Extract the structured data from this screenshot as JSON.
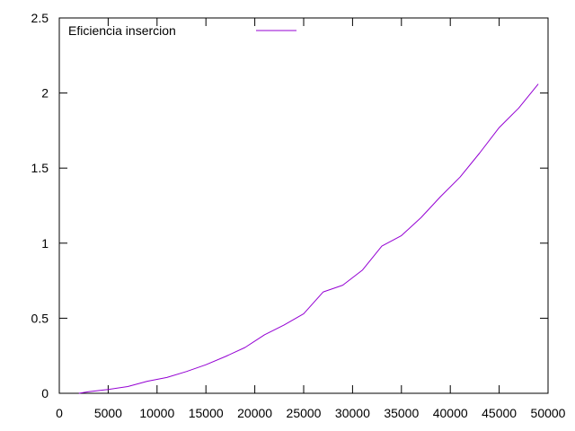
{
  "chart_data": {
    "type": "line",
    "title": "",
    "xlabel": "",
    "ylabel": "",
    "xlim": [
      0,
      50000
    ],
    "ylim": [
      0,
      2.5
    ],
    "grid": false,
    "legend_position": "top-left",
    "x_ticks": [
      0,
      5000,
      10000,
      15000,
      20000,
      25000,
      30000,
      35000,
      40000,
      45000,
      50000
    ],
    "x_tick_labels": [
      "0",
      "5000",
      "10000",
      "15000",
      "20000",
      "25000",
      "30000",
      "35000",
      "40000",
      "45000",
      "50000"
    ],
    "y_ticks": [
      0,
      0.5,
      1,
      1.5,
      2,
      2.5
    ],
    "y_tick_labels": [
      "0",
      "0.5",
      "1",
      "1.5",
      "2",
      "2.5"
    ],
    "series": [
      {
        "name": "Eficiencia insercion",
        "color": "#9400d3",
        "x": [
          2000,
          3000,
          5000,
          7000,
          9000,
          11000,
          13000,
          15000,
          17000,
          19000,
          21000,
          23000,
          25000,
          27000,
          29000,
          31000,
          33000,
          35000,
          37000,
          39000,
          41000,
          43000,
          45000,
          47000,
          49000
        ],
        "y": [
          0.0,
          0.01,
          0.025,
          0.045,
          0.08,
          0.105,
          0.145,
          0.19,
          0.245,
          0.305,
          0.39,
          0.455,
          0.53,
          0.675,
          0.72,
          0.82,
          0.98,
          1.05,
          1.17,
          1.31,
          1.44,
          1.6,
          1.77,
          1.9,
          2.06
        ]
      }
    ]
  }
}
